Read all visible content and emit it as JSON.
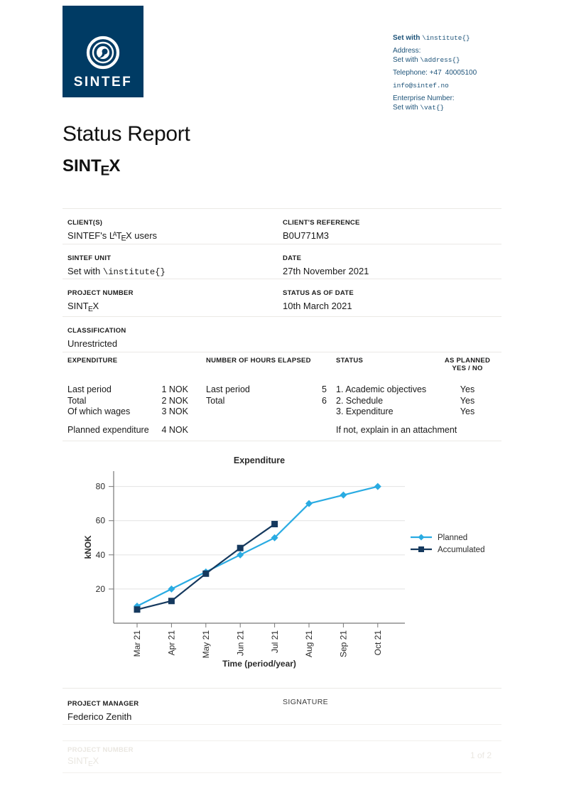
{
  "header": {
    "logo_text": "SINTEF",
    "contact": {
      "institute_set": "Set with",
      "institute_cmd": "\\institute{}",
      "address_label": "Address:",
      "address_set": "Set with ",
      "address_cmd": "\\address{}",
      "telephone": "Telephone: +47 40005100",
      "email": "info@sintef.no",
      "enterprise_label": "Enterprise Number:",
      "vat_set": "Set with ",
      "vat_cmd": "\\vat{}"
    }
  },
  "title": "Status Report",
  "project_number_logo": {
    "pre": "SINT",
    "e": "E",
    "x": "X"
  },
  "info_table": {
    "client_value": {
      "pre": "SINTEF's ",
      "l": "L",
      "a": "A",
      "t": "T",
      "e": "E",
      "x": "X",
      "post": " users"
    },
    "rows": [
      {
        "left_label": "CLIENT(S)",
        "right_label": "CLIENT'S REFERENCE",
        "right_value": "B0U771M3"
      },
      {
        "left_label": "SINTEF UNIT",
        "left_value_pre": "Set with ",
        "left_value_cmd": "\\institute{}",
        "right_label": "DATE",
        "right_value": "27th November 2021"
      },
      {
        "left_label": "PROJECT NUMBER",
        "right_label": "STATUS AS OF DATE",
        "right_value": "10th March 2021"
      },
      {
        "left_label": "CLASSIFICATION",
        "left_value": "Unrestricted"
      }
    ]
  },
  "expenditure_table": {
    "headers": {
      "col1": "EXPENDITURE",
      "col2": "NUMBER OF HOURS ELAPSED",
      "col3": "STATUS",
      "col4_line1": "AS PLANNED",
      "col4_line2": "YES / NO"
    },
    "col1_rows": [
      {
        "label": "Last period",
        "value": "1 NOK"
      },
      {
        "label": "Total",
        "value": "2 NOK"
      },
      {
        "label": "Of which wages",
        "value": "3 NOK"
      }
    ],
    "col1_planned": {
      "label": "Planned expenditure",
      "value": "4 NOK"
    },
    "col2_rows": [
      {
        "label": "Last period",
        "value": "5"
      },
      {
        "label": "Total",
        "value": "6"
      }
    ],
    "col3_rows": [
      "1. Academic objectives",
      "2. Schedule",
      "3. Expenditure"
    ],
    "col3_note": "If not, explain in an attachment",
    "col4_rows": [
      "Yes",
      "Yes",
      "Yes"
    ]
  },
  "chart_data": {
    "type": "line",
    "title": "Expenditure",
    "xlabel": "Time (period/year)",
    "ylabel": "kNOK",
    "categories": [
      "Mar 21",
      "Apr 21",
      "May 21",
      "Jun 21",
      "Jul 21",
      "Aug 21",
      "Sep 21",
      "Oct 21"
    ],
    "series": [
      {
        "name": "Planned",
        "color": "#29abe2",
        "marker": "diamond",
        "values": [
          10,
          20,
          30,
          40,
          50,
          70,
          75,
          80
        ]
      },
      {
        "name": "Accumulated",
        "color": "#15395e",
        "marker": "square",
        "values": [
          8,
          13,
          29,
          44,
          58,
          null,
          null,
          null
        ]
      }
    ],
    "yticks": [
      20,
      40,
      60,
      80
    ],
    "ylim": [
      0,
      89
    ],
    "grid": true,
    "grid_color": "#e2e2e2",
    "axis_color": "#777777",
    "legend_position": "right"
  },
  "signature_section": {
    "manager_label": "PROJECT MANAGER",
    "manager_name": "Federico Zenith",
    "signature_label": "SIGNATURE"
  },
  "footer": {
    "project_number_label": "PROJECT NUMBER",
    "page": "1 of 2"
  },
  "colors": {
    "sintef_navy": "#003b64",
    "contact_blue": "#1d5379",
    "planned": "#29abe2",
    "accumulated": "#15395e",
    "divider": "#ebe9e6",
    "footer_text": "#eae7e1"
  }
}
